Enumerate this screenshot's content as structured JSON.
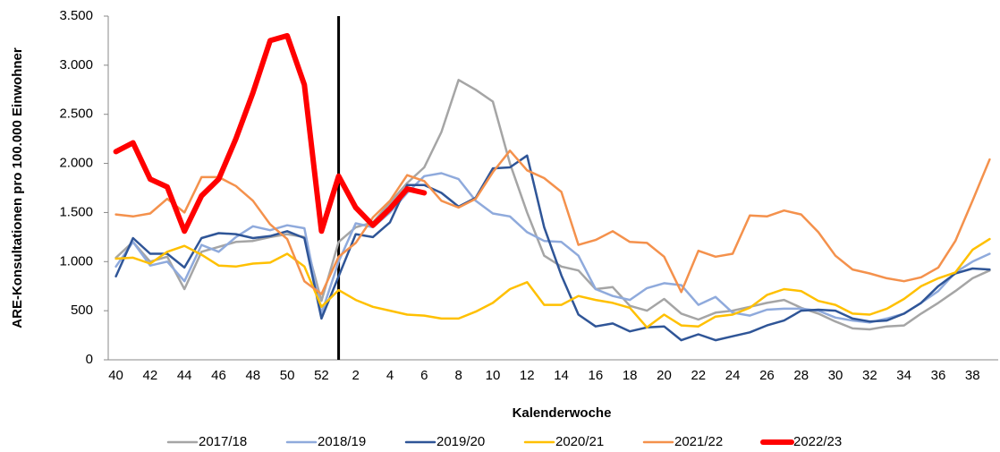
{
  "chart_data": {
    "type": "line",
    "x_label": "Kalenderwoche",
    "y_label": "ARE-Konsultationen pro 100.000 Einwohner",
    "categories": [
      "40",
      null,
      "42",
      null,
      "44",
      null,
      "46",
      null,
      "48",
      null,
      "50",
      null,
      "52",
      null,
      "2",
      null,
      "4",
      null,
      "6",
      null,
      "8",
      null,
      "10",
      null,
      "12",
      null,
      "14",
      null,
      "16",
      null,
      "18",
      null,
      "20",
      null,
      "22",
      null,
      "24",
      null,
      "26",
      null,
      "28",
      null,
      "30",
      null,
      "32",
      null,
      "34",
      null,
      "36",
      null,
      "38",
      null
    ],
    "ylim": [
      0,
      3500
    ],
    "yticks": [
      0,
      500,
      {
        "value": 1000,
        "label": "1.000"
      },
      {
        "value": 1500,
        "label": "1.500"
      },
      {
        "value": 2000,
        "label": "2.000"
      },
      {
        "value": 2500,
        "label": "2.500"
      },
      {
        "value": 3000,
        "label": "3.000"
      },
      {
        "value": 3500,
        "label": "3.500"
      }
    ],
    "grid": false,
    "legend": "bottom",
    "series": [
      {
        "name": "2017/18",
        "color": "#a5a5a5",
        "line_width": 2.5,
        "values": [
          1040,
          1200,
          1000,
          1050,
          720,
          1100,
          1150,
          1200,
          1210,
          1250,
          1280,
          1250,
          600,
          1200,
          1350,
          1400,
          1600,
          1800,
          1960,
          2320,
          2850,
          2750,
          2630,
          2000,
          1500,
          1060,
          950,
          910,
          720,
          740,
          550,
          500,
          620,
          470,
          410,
          480,
          500,
          540,
          580,
          610,
          530,
          470,
          390,
          320,
          310,
          340,
          350,
          470,
          580,
          700,
          830,
          910
        ]
      },
      {
        "name": "2018/19",
        "color": "#8faadc",
        "line_width": 2.5,
        "values": [
          950,
          1200,
          960,
          1000,
          800,
          1170,
          1100,
          1250,
          1360,
          1320,
          1370,
          1340,
          470,
          1000,
          1390,
          1350,
          1500,
          1700,
          1870,
          1900,
          1840,
          1620,
          1490,
          1460,
          1300,
          1210,
          1200,
          1060,
          720,
          650,
          610,
          730,
          780,
          760,
          560,
          640,
          480,
          450,
          510,
          520,
          520,
          500,
          430,
          400,
          380,
          420,
          470,
          580,
          700,
          890,
          1000,
          1080
        ]
      },
      {
        "name": "2019/20",
        "color": "#2f5597",
        "line_width": 2.5,
        "values": [
          850,
          1240,
          1080,
          1080,
          940,
          1240,
          1290,
          1280,
          1240,
          1260,
          1310,
          1240,
          420,
          850,
          1280,
          1250,
          1400,
          1780,
          1780,
          1700,
          1560,
          1650,
          1950,
          1960,
          2080,
          1350,
          860,
          460,
          340,
          370,
          290,
          330,
          340,
          200,
          260,
          200,
          240,
          280,
          350,
          400,
          500,
          510,
          500,
          420,
          390,
          400,
          470,
          580,
          750,
          880,
          930,
          920
        ]
      },
      {
        "name": "2020/21",
        "color": "#ffc000",
        "line_width": 2.5,
        "values": [
          1030,
          1040,
          980,
          1100,
          1160,
          1070,
          960,
          950,
          980,
          990,
          1080,
          950,
          540,
          710,
          610,
          540,
          500,
          460,
          450,
          420,
          420,
          490,
          580,
          720,
          790,
          560,
          560,
          650,
          610,
          580,
          530,
          330,
          460,
          350,
          340,
          440,
          460,
          530,
          660,
          720,
          700,
          600,
          560,
          470,
          460,
          520,
          620,
          750,
          830,
          890,
          1120,
          1230
        ]
      },
      {
        "name": "2021/22",
        "color": "#f4914c",
        "line_width": 2.5,
        "values": [
          1480,
          1460,
          1490,
          1640,
          1500,
          1860,
          1860,
          1770,
          1620,
          1380,
          1230,
          800,
          670,
          1050,
          1190,
          1450,
          1620,
          1880,
          1820,
          1620,
          1550,
          1640,
          1910,
          2130,
          1930,
          1850,
          1710,
          1170,
          1220,
          1310,
          1200,
          1190,
          1050,
          690,
          1110,
          1050,
          1080,
          1470,
          1460,
          1520,
          1480,
          1300,
          1060,
          920,
          880,
          830,
          800,
          840,
          940,
          1210,
          1620,
          2040
        ]
      },
      {
        "name": "2022/23",
        "color": "#ff0000",
        "line_width": 6,
        "values": [
          2120,
          2210,
          1840,
          1760,
          1310,
          1670,
          1840,
          2250,
          2720,
          3250,
          3300,
          2800,
          1310,
          1870,
          1550,
          1370,
          1540,
          1740,
          1700,
          null,
          null,
          null,
          null,
          null,
          null,
          null,
          null,
          null,
          null,
          null,
          null,
          null,
          null,
          null,
          null,
          null,
          null,
          null,
          null,
          null,
          null,
          null,
          null,
          null,
          null,
          null,
          null,
          null,
          null,
          null,
          null,
          null
        ]
      }
    ]
  }
}
